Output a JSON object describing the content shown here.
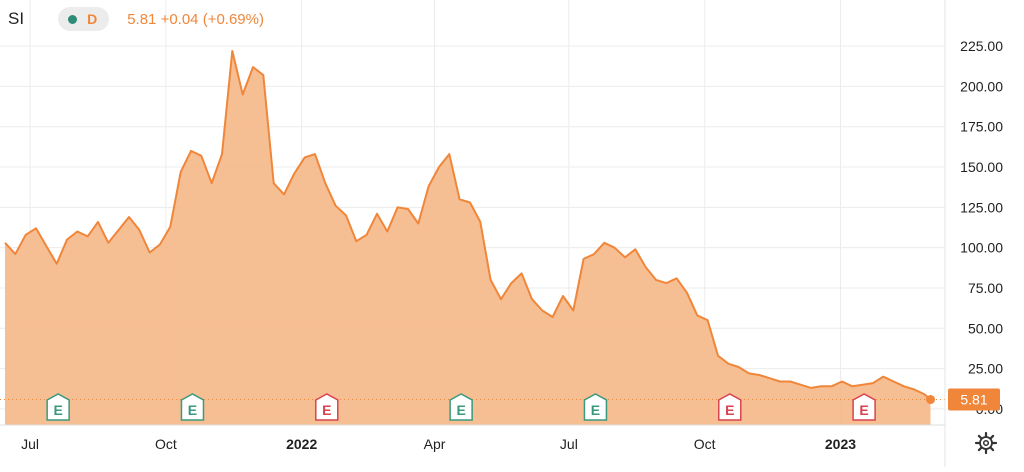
{
  "header": {
    "symbol": "SI",
    "interval": "D",
    "price": "5.81",
    "change": "+0.04",
    "change_pct": "(+0.69%)",
    "status_color": "#2e8b76"
  },
  "last_price_label": "5.81",
  "colors": {
    "line": "#f0863a",
    "fill": "#f5b887",
    "grid": "#ececec",
    "axis_text": "#222222",
    "earnings_green": "#3a9a7e",
    "earnings_red": "#d9434f"
  },
  "earnings_markers": [
    {
      "label": "E",
      "date": "2021-07-20",
      "color": "green"
    },
    {
      "label": "E",
      "date": "2021-10-19",
      "color": "green"
    },
    {
      "label": "E",
      "date": "2022-01-18",
      "color": "red"
    },
    {
      "label": "E",
      "date": "2022-04-19",
      "color": "green"
    },
    {
      "label": "E",
      "date": "2022-07-19",
      "color": "green"
    },
    {
      "label": "E",
      "date": "2022-10-18",
      "color": "red"
    },
    {
      "label": "E",
      "date": "2023-01-17",
      "color": "red"
    }
  ],
  "settings_icon": "gear-icon",
  "chart_data": {
    "type": "area",
    "title": "",
    "xlabel": "",
    "ylabel": "",
    "ylim": [
      -10,
      235
    ],
    "xlim": [
      "2021-06-14",
      "2023-03-04"
    ],
    "y_ticks": [
      "225.00",
      "200.00",
      "175.00",
      "150.00",
      "125.00",
      "100.00",
      "75.00",
      "50.00",
      "25.00",
      "0.00"
    ],
    "y_tick_values": [
      225,
      200,
      175,
      150,
      125,
      100,
      75,
      50,
      25,
      0
    ],
    "x_ticks": [
      {
        "label": "Jul",
        "date": "2021-07-01",
        "bold": false
      },
      {
        "label": "Oct",
        "date": "2021-10-01",
        "bold": false
      },
      {
        "label": "2022",
        "date": "2022-01-01",
        "bold": true
      },
      {
        "label": "Apr",
        "date": "2022-04-01",
        "bold": false
      },
      {
        "label": "Jul",
        "date": "2022-07-01",
        "bold": false
      },
      {
        "label": "Oct",
        "date": "2022-10-01",
        "bold": false
      },
      {
        "label": "2023",
        "date": "2023-01-01",
        "bold": true
      }
    ],
    "grid": true,
    "series": [
      {
        "x": [
          "2021-06-14",
          "2021-06-21",
          "2021-06-28",
          "2021-07-05",
          "2021-07-12",
          "2021-07-19",
          "2021-07-26",
          "2021-08-02",
          "2021-08-09",
          "2021-08-16",
          "2021-08-23",
          "2021-08-30",
          "2021-09-06",
          "2021-09-13",
          "2021-09-20",
          "2021-09-27",
          "2021-10-04",
          "2021-10-11",
          "2021-10-18",
          "2021-10-25",
          "2021-11-01",
          "2021-11-08",
          "2021-11-15",
          "2021-11-22",
          "2021-11-29",
          "2021-12-06",
          "2021-12-13",
          "2021-12-20",
          "2021-12-27",
          "2022-01-03",
          "2022-01-10",
          "2022-01-17",
          "2022-01-24",
          "2022-01-31",
          "2022-02-07",
          "2022-02-14",
          "2022-02-21",
          "2022-02-28",
          "2022-03-07",
          "2022-03-14",
          "2022-03-21",
          "2022-03-28",
          "2022-04-04",
          "2022-04-11",
          "2022-04-18",
          "2022-04-25",
          "2022-05-02",
          "2022-05-09",
          "2022-05-16",
          "2022-05-23",
          "2022-05-30",
          "2022-06-06",
          "2022-06-13",
          "2022-06-20",
          "2022-06-27",
          "2022-07-04",
          "2022-07-11",
          "2022-07-18",
          "2022-07-25",
          "2022-08-01",
          "2022-08-08",
          "2022-08-15",
          "2022-08-22",
          "2022-08-29",
          "2022-09-05",
          "2022-09-12",
          "2022-09-19",
          "2022-09-26",
          "2022-10-03",
          "2022-10-10",
          "2022-10-17",
          "2022-10-24",
          "2022-10-31",
          "2022-11-07",
          "2022-11-14",
          "2022-11-21",
          "2022-11-28",
          "2022-12-05",
          "2022-12-12",
          "2022-12-19",
          "2022-12-26",
          "2023-01-02",
          "2023-01-09",
          "2023-01-16",
          "2023-01-23",
          "2023-01-30",
          "2023-02-06",
          "2023-02-13",
          "2023-02-20",
          "2023-02-27",
          "2023-03-03"
        ],
        "y": [
          103,
          96,
          108,
          112,
          101,
          90,
          105,
          110,
          107,
          116,
          103,
          111,
          119,
          111,
          97,
          102,
          113,
          147,
          160,
          157,
          140,
          158,
          222,
          195,
          212,
          207,
          140,
          133,
          146,
          156,
          158,
          140,
          126,
          120,
          104,
          108,
          121,
          110,
          125,
          124,
          115,
          138,
          150,
          158,
          130,
          128,
          116,
          80,
          68,
          78,
          84,
          68,
          61,
          57,
          70,
          61,
          93,
          96,
          103,
          100,
          94,
          99,
          88,
          80,
          78,
          81,
          72,
          58,
          55,
          33,
          28,
          26,
          22,
          21,
          19,
          17,
          17,
          15,
          13,
          14,
          14,
          17,
          14,
          15,
          16,
          20,
          17,
          14,
          12,
          9,
          5.81
        ]
      }
    ]
  }
}
